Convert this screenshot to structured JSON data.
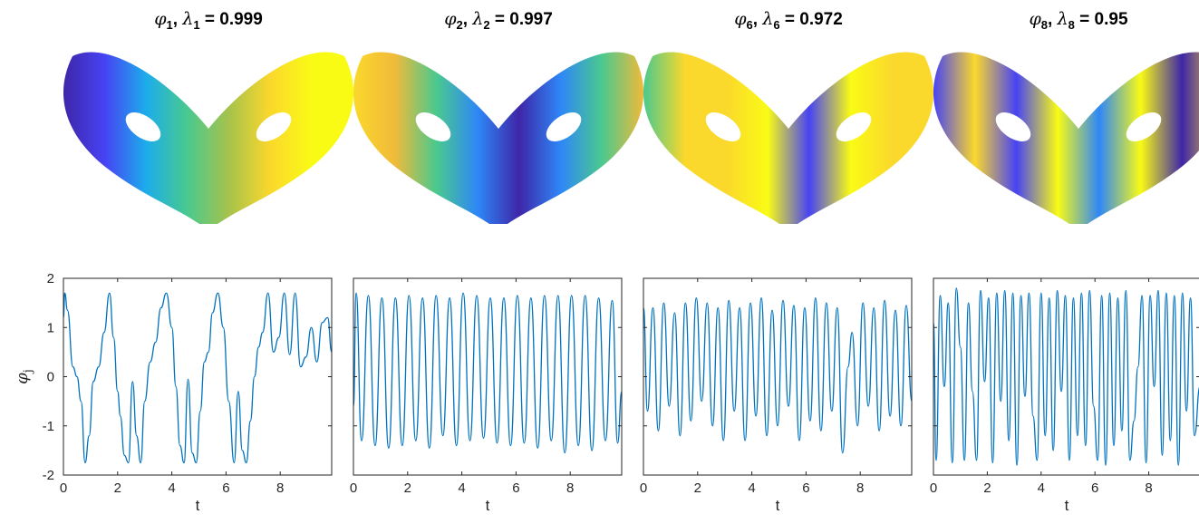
{
  "figure": {
    "top_titles": [
      {
        "phi": "φ",
        "phi_sub": "1",
        "sep": ", ",
        "lam": "λ",
        "lam_sub": "1",
        "value": " = 0.999"
      },
      {
        "phi": "φ",
        "phi_sub": "2",
        "sep": ", ",
        "lam": "λ",
        "lam_sub": "2",
        "value": " = 0.997"
      },
      {
        "phi": "φ",
        "phi_sub": "6",
        "sep": ", ",
        "lam": "λ",
        "lam_sub": "6",
        "value": " = 0.972"
      },
      {
        "phi": "φ",
        "phi_sub": "8",
        "sep": ", ",
        "lam": "λ",
        "lam_sub": "8",
        "value": " = 0.95"
      }
    ],
    "colormap": [
      "#3e26a8",
      "#4743f4",
      "#2e87f7",
      "#1cadeb",
      "#14c1c5",
      "#4ac98e",
      "#a7c24b",
      "#f0ba3a",
      "#fbd82c",
      "#f9fb15"
    ]
  },
  "chart_data": [
    {
      "type": "line",
      "title": "",
      "xlabel": "t",
      "ylabel": "φ",
      "ylabel_sub": "j",
      "xlim": [
        0,
        9.9
      ],
      "ylim": [
        -2,
        2
      ],
      "x_ticks": [
        "0",
        "2",
        "4",
        "6",
        "8"
      ],
      "y_ticks": [
        "2",
        "1",
        "0",
        "-1",
        "-2"
      ],
      "series": [
        {
          "color": "#0072bd",
          "x": [
            0,
            0.05,
            0.15,
            0.35,
            0.5,
            0.65,
            0.8,
            0.95,
            1.1,
            1.3,
            1.5,
            1.7,
            1.85,
            2.0,
            2.1,
            2.25,
            2.4,
            2.55,
            2.7,
            2.85,
            3.0,
            3.2,
            3.4,
            3.6,
            3.8,
            4.0,
            4.15,
            4.3,
            4.45,
            4.6,
            4.75,
            4.9,
            5.05,
            5.2,
            5.35,
            5.5,
            5.7,
            5.9,
            6.1,
            6.3,
            6.45,
            6.6,
            6.75,
            6.9,
            7.05,
            7.2,
            7.35,
            7.55,
            7.75,
            7.95,
            8.15,
            8.35,
            8.55,
            8.75,
            8.95,
            9.15,
            9.35,
            9.55,
            9.75,
            9.9
          ],
          "y": [
            1.2,
            1.7,
            1.35,
            0.2,
            0.0,
            -0.5,
            -1.75,
            -1.2,
            -0.1,
            0.2,
            0.9,
            1.7,
            0.8,
            -0.3,
            -0.8,
            -1.6,
            -1.75,
            -0.1,
            -1.2,
            -1.75,
            -0.5,
            0.3,
            0.7,
            1.4,
            1.7,
            1.0,
            -0.2,
            -1.4,
            -1.75,
            -0.05,
            -1.55,
            -1.75,
            -0.7,
            0.3,
            0.5,
            1.3,
            1.7,
            1.0,
            -0.5,
            -1.75,
            -0.3,
            -1.5,
            -1.75,
            -0.9,
            0.0,
            0.6,
            0.9,
            1.7,
            0.5,
            0.8,
            1.7,
            0.45,
            1.7,
            0.2,
            0.4,
            1.0,
            0.3,
            1.1,
            1.2,
            0.5
          ]
        }
      ]
    },
    {
      "type": "line",
      "title": "",
      "xlabel": "t",
      "ylabel": "",
      "xlim": [
        0,
        9.9
      ],
      "ylim": [
        -2,
        2
      ],
      "x_ticks": [
        "0",
        "2",
        "4",
        "6",
        "8"
      ],
      "y_ticks": [],
      "series": [
        {
          "color": "#0072bd",
          "x": [
            0,
            0.1,
            0.3,
            0.55,
            0.8,
            1.05,
            1.3,
            1.55,
            1.8,
            2.05,
            2.3,
            2.55,
            2.8,
            3.05,
            3.3,
            3.55,
            3.8,
            4.05,
            4.3,
            4.55,
            4.8,
            5.05,
            5.3,
            5.55,
            5.8,
            6.05,
            6.3,
            6.55,
            6.8,
            7.05,
            7.3,
            7.55,
            7.8,
            8.05,
            8.3,
            8.55,
            8.8,
            9.05,
            9.3,
            9.55,
            9.75,
            9.9
          ],
          "y": [
            -0.6,
            1.7,
            -1.3,
            1.65,
            -1.4,
            1.6,
            -1.45,
            1.6,
            -1.4,
            1.65,
            -1.3,
            1.6,
            -1.45,
            1.65,
            -1.2,
            1.6,
            -1.4,
            1.7,
            -1.3,
            1.65,
            -1.25,
            1.6,
            -1.35,
            1.6,
            -1.4,
            1.65,
            -1.35,
            1.6,
            -1.45,
            1.65,
            -1.3,
            1.65,
            -1.55,
            1.65,
            -1.4,
            1.65,
            -1.5,
            1.6,
            -1.3,
            1.55,
            -1.35,
            -0.3
          ]
        }
      ]
    },
    {
      "type": "line",
      "title": "",
      "xlabel": "t",
      "ylabel": "",
      "xlim": [
        0,
        9.9
      ],
      "ylim": [
        -2,
        2
      ],
      "x_ticks": [
        "0",
        "2",
        "4",
        "6",
        "8"
      ],
      "y_ticks": [],
      "series": [
        {
          "color": "#0072bd",
          "x": [
            0,
            0.15,
            0.35,
            0.55,
            0.75,
            0.95,
            1.15,
            1.35,
            1.55,
            1.75,
            1.95,
            2.15,
            2.35,
            2.55,
            2.75,
            2.95,
            3.15,
            3.35,
            3.55,
            3.75,
            3.95,
            4.15,
            4.35,
            4.55,
            4.75,
            4.95,
            5.15,
            5.35,
            5.55,
            5.75,
            5.95,
            6.15,
            6.35,
            6.55,
            6.75,
            6.95,
            7.15,
            7.35,
            7.55,
            7.7,
            7.9,
            8.1,
            8.3,
            8.5,
            8.7,
            8.9,
            9.1,
            9.3,
            9.5,
            9.7,
            9.9
          ],
          "y": [
            1.4,
            -0.7,
            1.4,
            -1.1,
            1.5,
            -0.6,
            1.3,
            -1.2,
            1.5,
            -0.9,
            1.6,
            -0.5,
            1.5,
            -1.0,
            1.4,
            -1.3,
            1.55,
            -0.7,
            1.4,
            -1.3,
            1.5,
            -0.8,
            1.6,
            -1.2,
            1.35,
            -1.0,
            1.55,
            -0.6,
            1.45,
            -1.3,
            1.4,
            -0.9,
            1.6,
            -1.1,
            1.5,
            -0.7,
            1.4,
            -1.55,
            0.2,
            0.9,
            -1.0,
            1.5,
            -0.6,
            1.4,
            -1.1,
            1.55,
            -0.8,
            1.35,
            -1.0,
            1.45,
            -0.5
          ]
        }
      ]
    },
    {
      "type": "line",
      "title": "",
      "xlabel": "t",
      "ylabel": "",
      "xlim": [
        0,
        9.9
      ],
      "ylim": [
        -2,
        2
      ],
      "x_ticks": [
        "0",
        "2",
        "4",
        "6",
        "8"
      ],
      "y_ticks": [],
      "series": [
        {
          "color": "#0072bd",
          "x": [
            0,
            0.1,
            0.25,
            0.4,
            0.55,
            0.7,
            0.85,
            1.0,
            1.15,
            1.3,
            1.45,
            1.6,
            1.75,
            1.9,
            2.05,
            2.2,
            2.35,
            2.5,
            2.65,
            2.8,
            2.95,
            3.1,
            3.25,
            3.4,
            3.55,
            3.7,
            3.85,
            4.0,
            4.15,
            4.3,
            4.45,
            4.6,
            4.75,
            4.9,
            5.05,
            5.2,
            5.35,
            5.5,
            5.65,
            5.8,
            5.95,
            6.1,
            6.25,
            6.4,
            6.55,
            6.7,
            6.85,
            7.0,
            7.15,
            7.3,
            7.45,
            7.6,
            7.75,
            7.9,
            8.05,
            8.2,
            8.35,
            8.5,
            8.65,
            8.8,
            8.95,
            9.1,
            9.25,
            9.4,
            9.55,
            9.7,
            9.9
          ],
          "y": [
            1.1,
            -1.7,
            1.65,
            -0.2,
            1.5,
            -1.75,
            1.8,
            0.6,
            -1.7,
            1.5,
            -0.3,
            -1.7,
            1.75,
            -0.1,
            1.6,
            -1.75,
            1.7,
            -0.5,
            1.75,
            -1.3,
            1.7,
            -1.8,
            1.65,
            -0.4,
            1.7,
            -0.8,
            -1.7,
            1.7,
            -1.2,
            1.6,
            -1.5,
            1.75,
            -0.3,
            1.65,
            -1.7,
            1.6,
            -1.2,
            1.7,
            -1.4,
            1.75,
            -0.6,
            -1.7,
            1.65,
            -1.8,
            1.7,
            -1.4,
            1.6,
            -1.1,
            1.75,
            -1.7,
            -0.9,
            0.2,
            1.65,
            -1.75,
            1.65,
            -0.2,
            1.75,
            -1.6,
            1.7,
            -1.3,
            1.65,
            -1.8,
            1.7,
            -0.7,
            1.6,
            -1.2,
            -0.2
          ]
        }
      ]
    }
  ]
}
